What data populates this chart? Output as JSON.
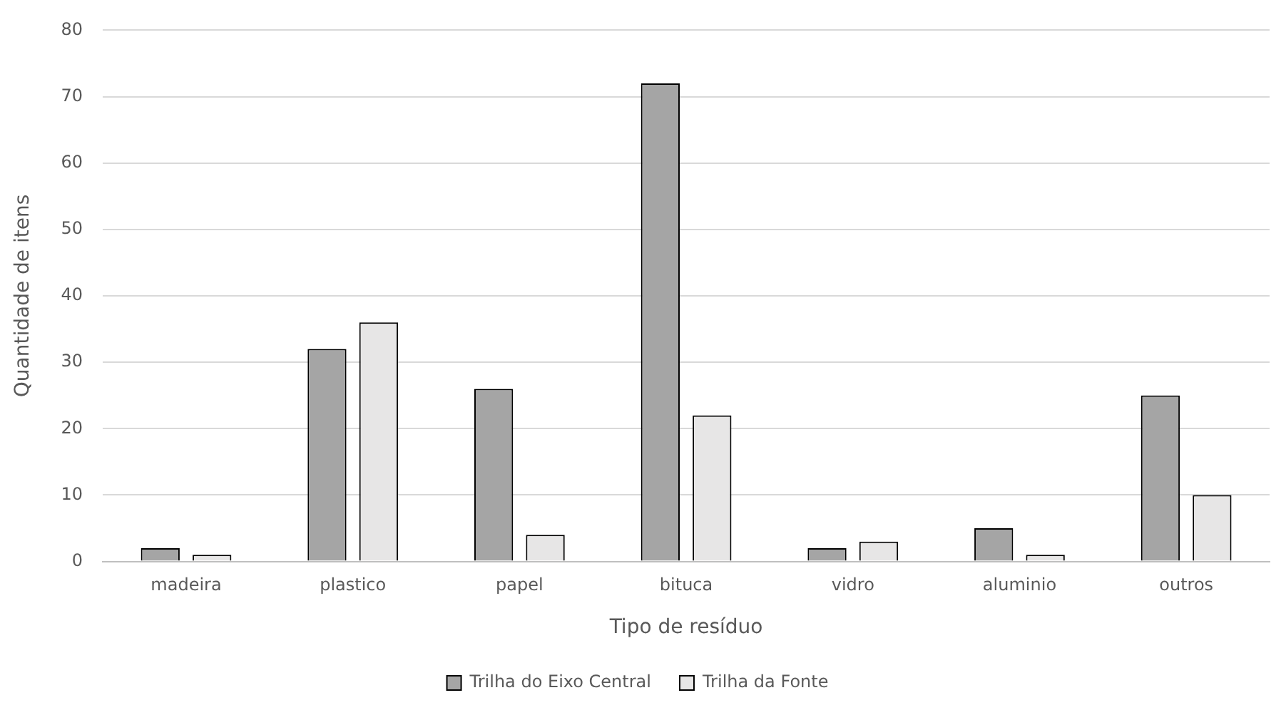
{
  "chart_data": {
    "type": "bar",
    "xlabel": "Tipo de resíduo",
    "ylabel": "Quantidade de itens",
    "categories": [
      "madeira",
      "plastico",
      "papel",
      "bituca",
      "vidro",
      "aluminio",
      "outros"
    ],
    "series": [
      {
        "name": "Trilha do Eixo Central",
        "color": "#a5a5a5",
        "values": [
          2,
          32,
          26,
          72,
          2,
          5,
          25
        ]
      },
      {
        "name": "Trilha da Fonte",
        "color": "#e7e6e6",
        "values": [
          1,
          36,
          4,
          22,
          3,
          1,
          10
        ]
      }
    ],
    "ylim": [
      0,
      80
    ],
    "yticks": [
      0,
      10,
      20,
      30,
      40,
      50,
      60,
      70,
      80
    ],
    "grid": "y",
    "legend": "bottom"
  }
}
